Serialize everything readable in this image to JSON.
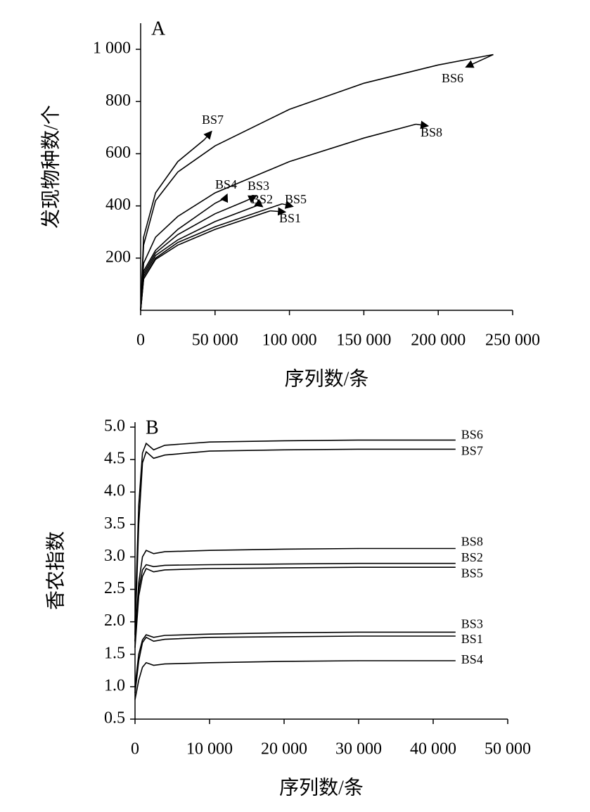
{
  "chart_data": [
    {
      "type": "line",
      "panel_label": "A",
      "xlabel": "序列数/条",
      "ylabel": "发现物种数/个",
      "xlim": [
        0,
        250000
      ],
      "ylim": [
        0,
        1100
      ],
      "xticks": [
        0,
        {
          "value": 50000,
          "label": "50 000"
        },
        {
          "value": 100000,
          "label": "100 000"
        },
        {
          "value": 150000,
          "label": "150 000"
        },
        {
          "value": 200000,
          "label": "200 000"
        },
        {
          "value": 250000,
          "label": "250 000"
        }
      ],
      "yticks": [
        200,
        400,
        600,
        800,
        {
          "value": 1000,
          "label": "1 000"
        }
      ],
      "series": [
        {
          "name": "BS6",
          "color": "#000000",
          "x": [
            0,
            2000,
            10000,
            25000,
            50000,
            100000,
            150000,
            200000,
            237000
          ],
          "values": [
            0,
            250,
            420,
            530,
            630,
            770,
            870,
            940,
            980
          ]
        },
        {
          "name": "BS7",
          "color": "#000000",
          "x": [
            0,
            2000,
            10000,
            25000,
            43000
          ],
          "values": [
            0,
            280,
            450,
            570,
            655
          ]
        },
        {
          "name": "BS8",
          "color": "#000000",
          "x": [
            0,
            2000,
            10000,
            25000,
            50000,
            100000,
            150000,
            185000
          ],
          "values": [
            0,
            180,
            280,
            360,
            450,
            570,
            660,
            713
          ]
        },
        {
          "name": "BS4",
          "color": "#000000",
          "x": [
            0,
            2000,
            10000,
            25000,
            50000,
            57000
          ],
          "values": [
            0,
            150,
            230,
            310,
            410,
            430
          ]
        },
        {
          "name": "BS3",
          "color": "#000000",
          "x": [
            0,
            2000,
            10000,
            25000,
            50000,
            71000
          ],
          "values": [
            0,
            140,
            220,
            290,
            370,
            420
          ]
        },
        {
          "name": "BS2",
          "color": "#000000",
          "x": [
            0,
            2000,
            10000,
            25000,
            50000,
            80000
          ],
          "values": [
            0,
            130,
            210,
            270,
            340,
            405
          ]
        },
        {
          "name": "BS5",
          "color": "#000000",
          "x": [
            0,
            2000,
            10000,
            25000,
            50000,
            95000
          ],
          "values": [
            0,
            120,
            200,
            260,
            320,
            408
          ]
        },
        {
          "name": "BS1",
          "color": "#000000",
          "x": [
            0,
            2000,
            10000,
            25000,
            50000,
            87000
          ],
          "values": [
            0,
            120,
            195,
            250,
            310,
            381
          ]
        }
      ]
    },
    {
      "type": "line",
      "panel_label": "B",
      "xlabel": "序列数/条",
      "ylabel": "香农指数",
      "xlim": [
        0,
        50000
      ],
      "ylim": [
        0.5,
        5.0
      ],
      "xticks": [
        0,
        {
          "value": 10000,
          "label": "10 000"
        },
        {
          "value": 20000,
          "label": "20 000"
        },
        {
          "value": 30000,
          "label": "30 000"
        },
        {
          "value": 40000,
          "label": "40 000"
        },
        {
          "value": 50000,
          "label": "50 000"
        }
      ],
      "yticks": [
        0.5,
        {
          "value": 1,
          "label": "1.0"
        },
        1.5,
        {
          "value": 2,
          "label": "2.0"
        },
        2.5,
        {
          "value": 3,
          "label": "3.0"
        },
        3.5,
        {
          "value": 4,
          "label": "4.0"
        },
        4.5,
        {
          "value": 5,
          "label": "5.0"
        }
      ],
      "x": [
        0,
        500,
        1000,
        1500,
        2500,
        4000,
        10000,
        20000,
        30000,
        43000
      ],
      "series": [
        {
          "name": "BS6",
          "color": "#000000",
          "values": [
            2.0,
            3.8,
            4.6,
            4.75,
            4.65,
            4.72,
            4.77,
            4.79,
            4.8,
            4.8
          ]
        },
        {
          "name": "BS7",
          "color": "#000000",
          "values": [
            1.8,
            3.5,
            4.45,
            4.62,
            4.52,
            4.57,
            4.63,
            4.65,
            4.66,
            4.66
          ]
        },
        {
          "name": "BS8",
          "color": "#000000",
          "values": [
            1.7,
            2.6,
            3.0,
            3.1,
            3.05,
            3.08,
            3.1,
            3.12,
            3.13,
            3.13
          ]
        },
        {
          "name": "BS2",
          "color": "#000000",
          "values": [
            1.7,
            2.5,
            2.8,
            2.88,
            2.85,
            2.87,
            2.88,
            2.89,
            2.9,
            2.9
          ]
        },
        {
          "name": "BS5",
          "color": "#000000",
          "values": [
            1.6,
            2.4,
            2.7,
            2.82,
            2.77,
            2.8,
            2.82,
            2.83,
            2.84,
            2.84
          ]
        },
        {
          "name": "BS3",
          "color": "#000000",
          "values": [
            1.0,
            1.5,
            1.72,
            1.8,
            1.76,
            1.79,
            1.81,
            1.83,
            1.84,
            1.84
          ]
        },
        {
          "name": "BS1",
          "color": "#000000",
          "values": [
            0.9,
            1.4,
            1.68,
            1.76,
            1.7,
            1.73,
            1.76,
            1.77,
            1.78,
            1.78
          ]
        },
        {
          "name": "BS4",
          "color": "#000000",
          "values": [
            0.8,
            1.1,
            1.3,
            1.37,
            1.33,
            1.35,
            1.37,
            1.39,
            1.4,
            1.4
          ]
        }
      ]
    }
  ]
}
